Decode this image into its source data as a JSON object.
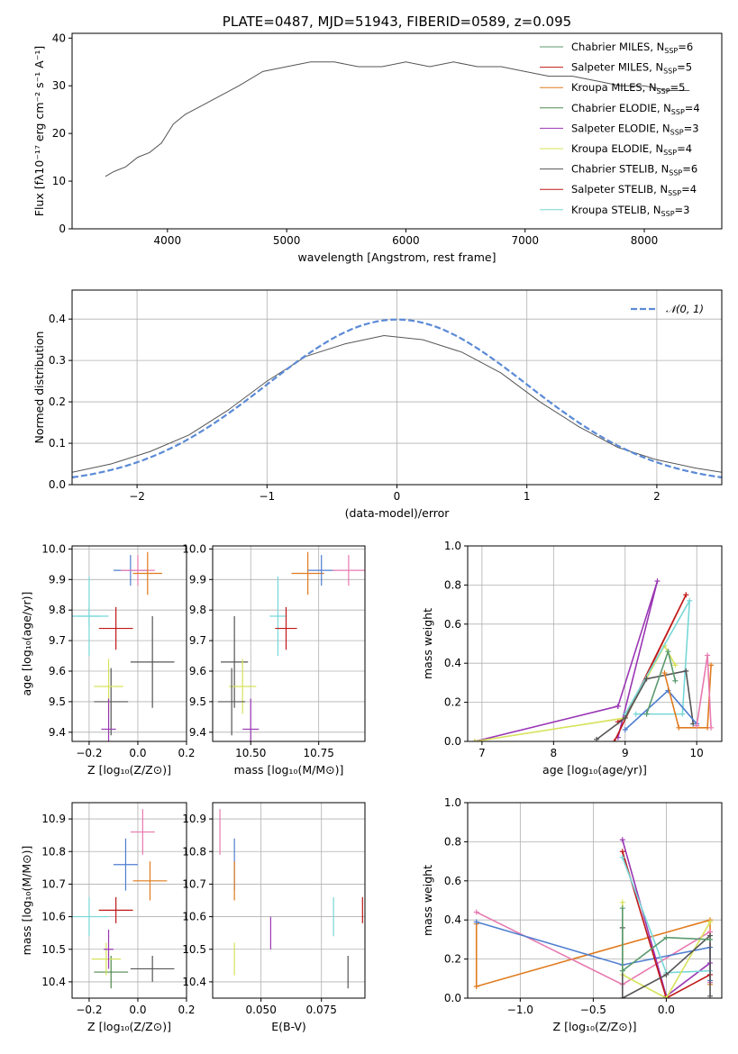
{
  "colors": {
    "chabrier_miles": "#5a9a6e",
    "salpeter_miles": "#4f7ed0",
    "kroupa_miles": "#e07b1f",
    "chabrier_elodie": "#4e8a4e",
    "salpeter_elodie": "#9a36b4",
    "kroupa_elodie": "#d7e25a",
    "chabrier_stelib": "#555555",
    "salpeter_stelib": "#c01818",
    "kroupa_stelib": "#78d7d7",
    "pink": "#e87ab0",
    "gauss": "#5b8ad6"
  },
  "chart_data": [
    {
      "id": "spectrum",
      "type": "line",
      "title": "PLATE=0487, MJD=51943, FIBERID=0589, z=0.095",
      "xlabel": "wavelength [Angstrom, rest frame]",
      "ylabel": "Flux [fλ10⁻¹⁷ erg cm⁻² s⁻¹ A⁻¹]",
      "xlim": [
        3200,
        8650
      ],
      "ylim": [
        0,
        41
      ],
      "xticks": [
        "4000",
        "5000",
        "6000",
        "7000",
        "8000"
      ],
      "yticks": [
        "0",
        "10",
        "20",
        "30",
        "40"
      ],
      "legend_position": "top-right",
      "legend": [
        {
          "text": "Chabrier MILES, N",
          "sub": "SSP",
          "tail": "=6",
          "color": "chabrier_miles"
        },
        {
          "text": "Salpeter MILES, N",
          "sub": "SSP",
          "tail": "=5",
          "color": "salpeter_stelib"
        },
        {
          "text": "Kroupa MILES, N",
          "sub": "SSP",
          "tail": "=5",
          "color": "kroupa_miles"
        },
        {
          "text": "Chabrier ELODIE, N",
          "sub": "SSP",
          "tail": "=4",
          "color": "chabrier_elodie"
        },
        {
          "text": "Salpeter ELODIE, N",
          "sub": "SSP",
          "tail": "=3",
          "color": "salpeter_elodie"
        },
        {
          "text": "Kroupa ELODIE, N",
          "sub": "SSP",
          "tail": "=4",
          "color": "kroupa_elodie"
        },
        {
          "text": "Chabrier STELIB, N",
          "sub": "SSP",
          "tail": "=6",
          "color": "chabrier_stelib"
        },
        {
          "text": "Salpeter STELIB, N",
          "sub": "SSP",
          "tail": "=4",
          "color": "salpeter_stelib"
        },
        {
          "text": "Kroupa STELIB, N",
          "sub": "SSP",
          "tail": "=3",
          "color": "kroupa_stelib"
        }
      ],
      "series": [
        {
          "color": "chabrier_stelib",
          "x": [
            3480,
            3550,
            3650,
            3750,
            3850,
            3950,
            4050,
            4150,
            4300,
            4450,
            4600,
            4800,
            5000,
            5200,
            5400,
            5600,
            5800,
            6000,
            6200,
            6400,
            6600,
            6800,
            7000,
            7200,
            7400,
            7600,
            7800,
            8000,
            8200,
            8380
          ],
          "y": [
            11,
            12,
            13,
            15,
            16,
            18,
            22,
            24,
            26,
            28,
            30,
            33,
            34,
            35,
            35,
            34,
            34,
            35,
            34,
            35,
            34,
            34,
            33,
            32,
            32,
            31,
            30,
            30,
            29,
            29
          ]
        }
      ]
    },
    {
      "id": "residuals",
      "type": "line",
      "xlabel": "(data-model)/error",
      "ylabel": "Normed distribution",
      "xlim": [
        -2.5,
        2.5
      ],
      "ylim": [
        0,
        0.47
      ],
      "xticks": [
        "−2",
        "−1",
        "0",
        "1",
        "2"
      ],
      "yticks": [
        "0.0",
        "0.1",
        "0.2",
        "0.3",
        "0.4"
      ],
      "legend": [
        {
          "text": "𝒩(0, 1)",
          "color": "gauss"
        }
      ],
      "legend_position": "top-right",
      "series": [
        {
          "color": "chabrier_stelib",
          "x": [
            -2.5,
            -2.2,
            -1.9,
            -1.6,
            -1.3,
            -1.0,
            -0.7,
            -0.4,
            -0.1,
            0.2,
            0.5,
            0.8,
            1.1,
            1.4,
            1.7,
            2.0,
            2.3,
            2.5
          ],
          "y": [
            0.03,
            0.05,
            0.08,
            0.12,
            0.18,
            0.25,
            0.31,
            0.34,
            0.36,
            0.35,
            0.32,
            0.27,
            0.2,
            0.14,
            0.09,
            0.06,
            0.04,
            0.03
          ]
        }
      ]
    },
    {
      "id": "z-age",
      "type": "scatter",
      "xlabel": "Z [log₁₀(Z/Z⊙)]",
      "ylabel": "age [log₁₀(age/yr)]",
      "xlim": [
        -0.27,
        0.2
      ],
      "ylim": [
        9.37,
        10.01
      ],
      "xticks": [
        "−0.2",
        "0.0",
        "0.2"
      ],
      "yticks": [
        "9.4",
        "9.5",
        "9.6",
        "9.7",
        "9.8",
        "9.9",
        "10.0"
      ],
      "points": [
        {
          "x": -0.2,
          "y": 9.78,
          "ex": 0.05,
          "ey": 0.13,
          "color": "kroupa_stelib"
        },
        {
          "x": -0.2,
          "y": 9.78,
          "ex": 0.08,
          "ey": 0.03,
          "color": "kroupa_stelib"
        },
        {
          "x": -0.09,
          "y": 9.74,
          "ex": 0.07,
          "ey": 0.07,
          "color": "salpeter_stelib"
        },
        {
          "x": -0.11,
          "y": 9.5,
          "ex": 0.07,
          "ey": 0.11,
          "color": "chabrier_stelib"
        },
        {
          "x": -0.12,
          "y": 9.55,
          "ex": 0.06,
          "ey": 0.09,
          "color": "kroupa_elodie"
        },
        {
          "x": -0.12,
          "y": 9.41,
          "ex": 0.03,
          "ey": 0.1,
          "color": "salpeter_elodie"
        },
        {
          "x": -0.03,
          "y": 9.93,
          "ex": 0.07,
          "ey": 0.05,
          "color": "salpeter_miles"
        },
        {
          "x": 0.0,
          "y": 9.93,
          "ex": 0.07,
          "ey": 0.05,
          "color": "pink"
        },
        {
          "x": 0.04,
          "y": 9.92,
          "ex": 0.06,
          "ey": 0.07,
          "color": "kroupa_miles"
        },
        {
          "x": 0.06,
          "y": 9.63,
          "ex": 0.09,
          "ey": 0.15,
          "color": "chabrier_stelib"
        }
      ]
    },
    {
      "id": "mass-age",
      "type": "scatter",
      "xlabel": "mass [log₁₀(M/M⊙)]",
      "xlim": [
        10.36,
        10.92
      ],
      "ylim": [
        9.37,
        10.01
      ],
      "xticks": [
        "10.50",
        "10.75"
      ],
      "yticks": [
        "9.4",
        "9.5",
        "9.6",
        "9.7",
        "9.8",
        "9.9",
        "10.0"
      ],
      "points": [
        {
          "x": 10.6,
          "y": 9.78,
          "ex": 0.03,
          "ey": 0.13,
          "color": "kroupa_stelib"
        },
        {
          "x": 10.63,
          "y": 9.74,
          "ex": 0.04,
          "ey": 0.07,
          "color": "salpeter_stelib"
        },
        {
          "x": 10.44,
          "y": 9.63,
          "ex": 0.05,
          "ey": 0.15,
          "color": "chabrier_stelib"
        },
        {
          "x": 10.47,
          "y": 9.55,
          "ex": 0.05,
          "ey": 0.09,
          "color": "kroupa_elodie"
        },
        {
          "x": 10.43,
          "y": 9.5,
          "ex": 0.05,
          "ey": 0.11,
          "color": "chabrier_stelib"
        },
        {
          "x": 10.5,
          "y": 9.41,
          "ex": 0.03,
          "ey": 0.1,
          "color": "salpeter_elodie"
        },
        {
          "x": 10.71,
          "y": 9.92,
          "ex": 0.06,
          "ey": 0.07,
          "color": "kroupa_miles"
        },
        {
          "x": 10.76,
          "y": 9.93,
          "ex": 0.05,
          "ey": 0.05,
          "color": "salpeter_miles"
        },
        {
          "x": 10.86,
          "y": 9.93,
          "ex": 0.06,
          "ey": 0.05,
          "color": "pink"
        }
      ]
    },
    {
      "id": "age-weight",
      "type": "line",
      "xlabel": "age [log₁₀(age/yr)]",
      "ylabel": "mass weight",
      "xlim": [
        6.8,
        10.35
      ],
      "ylim": [
        0,
        1.0
      ],
      "xticks": [
        "7",
        "8",
        "9",
        "10"
      ],
      "yticks": [
        "0.0",
        "0.2",
        "0.4",
        "0.6",
        "0.8",
        "1.0"
      ],
      "series": [
        {
          "color": "salpeter_elodie",
          "x": [
            8.9,
            9.45,
            8.9
          ],
          "y": [
            0.18,
            0.82,
            0.02
          ]
        },
        {
          "color": "salpeter_elodie",
          "x": [
            6.9,
            8.9
          ],
          "y": [
            0.0,
            0.18
          ]
        },
        {
          "color": "salpeter_stelib",
          "x": [
            8.85,
            9.85,
            9.0,
            8.9
          ],
          "y": [
            0.0,
            0.75,
            0.12,
            0.1
          ]
        },
        {
          "color": "kroupa_elodie",
          "x": [
            6.9,
            9.0,
            9.55,
            9.7
          ],
          "y": [
            0.0,
            0.12,
            0.49,
            0.39
          ]
        },
        {
          "color": "kroupa_stelib",
          "x": [
            9.0,
            9.9,
            9.8,
            9.15
          ],
          "y": [
            0.14,
            0.72,
            0.14,
            0.14
          ]
        },
        {
          "color": "chabrier_stelib",
          "x": [
            8.6,
            9.0,
            9.3,
            9.85,
            9.95
          ],
          "y": [
            0.01,
            0.12,
            0.32,
            0.36,
            0.09
          ]
        },
        {
          "color": "salpeter_miles",
          "x": [
            9.0,
            9.6,
            10.0
          ],
          "y": [
            0.06,
            0.26,
            0.09
          ]
        },
        {
          "color": "kroupa_miles",
          "x": [
            9.55,
            9.75,
            10.15,
            10.2
          ],
          "y": [
            0.35,
            0.07,
            0.07,
            0.39
          ]
        },
        {
          "color": "pink",
          "x": [
            10.0,
            10.15,
            10.2
          ],
          "y": [
            0.08,
            0.44,
            0.07
          ]
        },
        {
          "color": "chabrier_miles",
          "x": [
            9.3,
            9.6,
            9.7
          ],
          "y": [
            0.14,
            0.46,
            0.31
          ]
        }
      ]
    },
    {
      "id": "z-mass",
      "type": "scatter",
      "xlabel": "Z [log₁₀(Z/Z⊙)]",
      "ylabel": "mass [log₁₀(M/M⊙)]",
      "xlim": [
        -0.27,
        0.2
      ],
      "ylim": [
        10.35,
        10.95
      ],
      "xticks": [
        "−0.2",
        "0.0",
        "0.2"
      ],
      "yticks": [
        "10.4",
        "10.5",
        "10.6",
        "10.7",
        "10.8",
        "10.9"
      ],
      "points": [
        {
          "x": -0.2,
          "y": 10.6,
          "ex": 0.08,
          "ey": 0.06,
          "color": "kroupa_stelib"
        },
        {
          "x": -0.09,
          "y": 10.62,
          "ex": 0.07,
          "ey": 0.04,
          "color": "salpeter_stelib"
        },
        {
          "x": -0.11,
          "y": 10.43,
          "ex": 0.07,
          "ey": 0.05,
          "color": "chabrier_elodie"
        },
        {
          "x": -0.13,
          "y": 10.47,
          "ex": 0.06,
          "ey": 0.05,
          "color": "kroupa_elodie"
        },
        {
          "x": -0.12,
          "y": 10.5,
          "ex": 0.02,
          "ey": 0.06,
          "color": "salpeter_elodie"
        },
        {
          "x": -0.05,
          "y": 10.76,
          "ex": 0.05,
          "ey": 0.08,
          "color": "salpeter_miles"
        },
        {
          "x": 0.02,
          "y": 10.86,
          "ex": 0.05,
          "ey": 0.07,
          "color": "pink"
        },
        {
          "x": 0.05,
          "y": 10.71,
          "ex": 0.07,
          "ey": 0.06,
          "color": "kroupa_miles"
        },
        {
          "x": 0.06,
          "y": 10.44,
          "ex": 0.09,
          "ey": 0.04,
          "color": "chabrier_stelib"
        }
      ]
    },
    {
      "id": "ebv-mass",
      "type": "scatter",
      "xlabel": "E(B-V)",
      "xlim": [
        0.03,
        0.093
      ],
      "ylim": [
        10.35,
        10.95
      ],
      "xticks": [
        "0.050",
        "0.075"
      ],
      "yticks": [
        "10.4",
        "10.5",
        "10.6",
        "10.7",
        "10.8",
        "10.9"
      ],
      "points": [
        {
          "x": 0.033,
          "y": 10.86,
          "ex": 0,
          "ey": 0.07,
          "color": "pink"
        },
        {
          "x": 0.039,
          "y": 10.76,
          "ex": 0,
          "ey": 0.08,
          "color": "salpeter_miles"
        },
        {
          "x": 0.039,
          "y": 10.71,
          "ex": 0,
          "ey": 0.06,
          "color": "kroupa_miles"
        },
        {
          "x": 0.039,
          "y": 10.47,
          "ex": 0,
          "ey": 0.05,
          "color": "kroupa_elodie"
        },
        {
          "x": 0.054,
          "y": 10.55,
          "ex": 0,
          "ey": 0.05,
          "color": "salpeter_elodie"
        },
        {
          "x": 0.08,
          "y": 10.6,
          "ex": 0,
          "ey": 0.06,
          "color": "kroupa_stelib"
        },
        {
          "x": 0.086,
          "y": 10.43,
          "ex": 0,
          "ey": 0.05,
          "color": "chabrier_stelib"
        },
        {
          "x": 0.092,
          "y": 10.62,
          "ex": 0,
          "ey": 0.04,
          "color": "salpeter_stelib"
        }
      ]
    },
    {
      "id": "z-weight",
      "type": "line",
      "xlabel": "Z [log₁₀(Z/Z⊙)]",
      "ylabel": "mass weight",
      "xlim": [
        -1.36,
        0.38
      ],
      "ylim": [
        0,
        1.0
      ],
      "xticks": [
        "−1.0",
        "−0.5",
        "0.0"
      ],
      "yticks": [
        "0.0",
        "0.2",
        "0.4",
        "0.6",
        "0.8",
        "1.0"
      ],
      "series": [
        {
          "color": "kroupa_miles",
          "x": [
            -1.3,
            -1.3,
            0.3,
            0.3
          ],
          "y": [
            0.38,
            0.06,
            0.4,
            0.07
          ]
        },
        {
          "color": "pink",
          "x": [
            -1.3,
            -0.3,
            0.3,
            0.3
          ],
          "y": [
            0.44,
            0.07,
            0.34,
            0.08
          ]
        },
        {
          "color": "salpeter_miles",
          "x": [
            -1.3,
            -0.3,
            0.3,
            0.3
          ],
          "y": [
            0.39,
            0.17,
            0.26,
            0.09
          ]
        },
        {
          "color": "salpeter_elodie",
          "x": [
            -0.3,
            0.0,
            0.3
          ],
          "y": [
            0.81,
            0.01,
            0.18
          ]
        },
        {
          "color": "salpeter_stelib",
          "x": [
            -0.3,
            0.0,
            0.3
          ],
          "y": [
            0.75,
            0.0,
            0.12
          ]
        },
        {
          "color": "kroupa_stelib",
          "x": [
            -0.3,
            0.0,
            0.3
          ],
          "y": [
            0.72,
            0.13,
            0.14
          ]
        },
        {
          "color": "kroupa_elodie",
          "x": [
            -0.3,
            -0.3,
            0.0,
            0.3
          ],
          "y": [
            0.49,
            0.12,
            0.0,
            0.39
          ]
        },
        {
          "color": "chabrier_stelib",
          "x": [
            -0.3,
            -0.3,
            0.0,
            0.3,
            0.3
          ],
          "y": [
            0.36,
            0.0,
            0.12,
            0.32,
            0.01
          ]
        },
        {
          "color": "chabrier_miles",
          "x": [
            -0.3,
            -0.3,
            0.0,
            0.3
          ],
          "y": [
            0.46,
            0.14,
            0.31,
            0.3
          ]
        }
      ]
    }
  ]
}
